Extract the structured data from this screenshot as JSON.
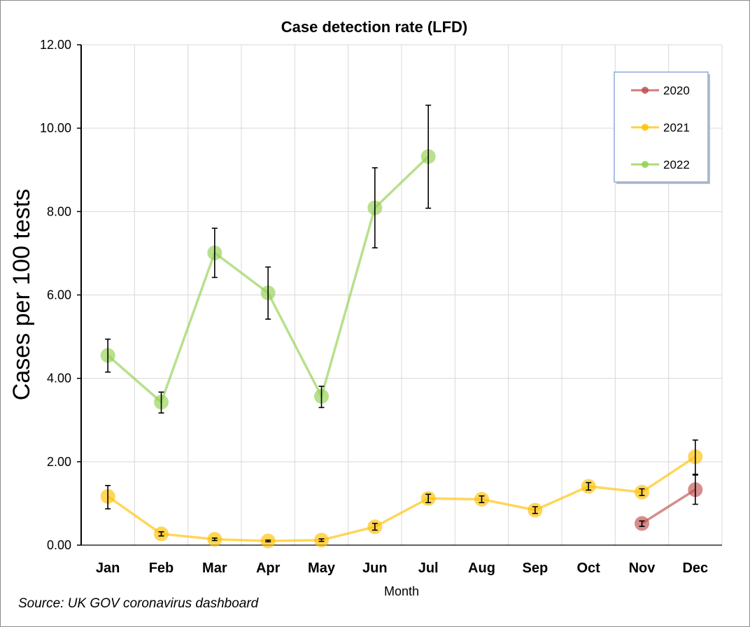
{
  "chart_data": {
    "type": "line",
    "title": "Case detection rate (LFD)",
    "xlabel": "Month",
    "ylabel": "Cases per 100 tests",
    "categories": [
      "Jan",
      "Feb",
      "Mar",
      "Apr",
      "May",
      "Jun",
      "Jul",
      "Aug",
      "Sep",
      "Oct",
      "Nov",
      "Dec"
    ],
    "ylim": [
      0,
      12
    ],
    "yticks": [
      "0.00",
      "2.00",
      "4.00",
      "6.00",
      "8.00",
      "10.00",
      "12.00"
    ],
    "grid": true,
    "legend_position": "top-right",
    "series": [
      {
        "name": "2020",
        "color": "#c0504d",
        "values": [
          null,
          null,
          null,
          null,
          null,
          null,
          null,
          null,
          null,
          null,
          0.52,
          1.33
        ],
        "err_low": [
          null,
          null,
          null,
          null,
          null,
          null,
          null,
          null,
          null,
          null,
          0.45,
          0.98
        ],
        "err_high": [
          null,
          null,
          null,
          null,
          null,
          null,
          null,
          null,
          null,
          null,
          0.58,
          1.68
        ]
      },
      {
        "name": "2021",
        "color": "#ffc000",
        "values": [
          1.17,
          0.27,
          0.14,
          0.1,
          0.12,
          0.44,
          1.12,
          1.1,
          0.84,
          1.41,
          1.27,
          2.12
        ],
        "err_low": [
          0.87,
          0.22,
          0.11,
          0.08,
          0.09,
          0.36,
          1.02,
          1.02,
          0.76,
          1.32,
          1.19,
          1.7
        ],
        "err_high": [
          1.43,
          0.32,
          0.17,
          0.12,
          0.15,
          0.52,
          1.22,
          1.18,
          0.92,
          1.5,
          1.35,
          2.52
        ]
      },
      {
        "name": "2022",
        "color": "#92d050",
        "values": [
          4.55,
          3.43,
          7.01,
          6.05,
          3.57,
          8.09,
          9.32,
          null,
          null,
          null,
          null,
          null
        ],
        "err_low": [
          4.15,
          3.17,
          6.42,
          5.42,
          3.3,
          7.13,
          8.08,
          null,
          null,
          null,
          null,
          null
        ],
        "err_high": [
          4.94,
          3.67,
          7.6,
          6.67,
          3.81,
          9.05,
          10.55,
          null,
          null,
          null,
          null,
          null
        ]
      }
    ],
    "source_note": "Source: UK GOV coronavirus dashboard"
  }
}
